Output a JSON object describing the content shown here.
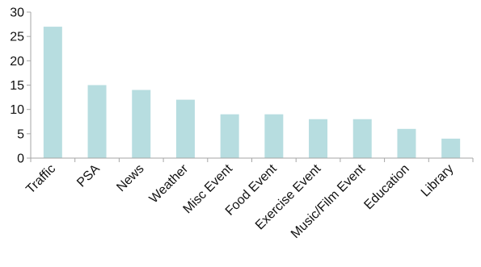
{
  "chart_data": {
    "type": "bar",
    "title": "",
    "xlabel": "",
    "ylabel": "",
    "categories": [
      "Traffic",
      "PSA",
      "News",
      "Weather",
      "Misc Event",
      "Food Event",
      "Exercise Event",
      "Music/Film Event",
      "Education",
      "Library"
    ],
    "values": [
      27,
      15,
      14,
      12,
      9,
      9,
      8,
      8,
      6,
      4
    ],
    "ylim": [
      0,
      30
    ],
    "yticks": [
      "0",
      "5",
      "10",
      "15",
      "20",
      "25",
      "30"
    ],
    "grid": false,
    "legend": "none",
    "colors": {
      "bar": "#b7dde0",
      "axis": "#a6a6a6",
      "text": "#111111"
    }
  }
}
